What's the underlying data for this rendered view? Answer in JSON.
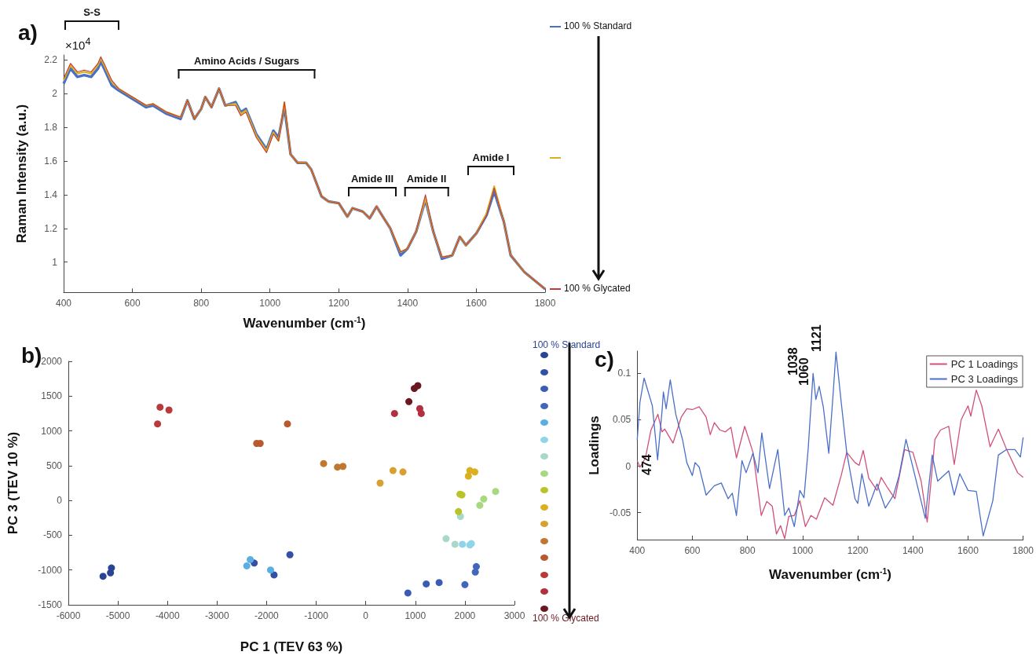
{
  "chart_data": [
    {
      "type": "line",
      "title": "a)",
      "xlabel": "Wavenumber (cm$^{-1}$)",
      "ylabel": "Raman Intensity (a.u.)",
      "xlim": [
        400,
        1800
      ],
      "xticks": [
        400,
        600,
        800,
        1000,
        1200,
        1400,
        1600,
        1800
      ],
      "ylim": [
        0.82,
        2.23
      ],
      "yticks": [
        1,
        1.2,
        1.4,
        1.6,
        1.8,
        2,
        2.2
      ],
      "grid": false,
      "legend": "right",
      "marker": "none",
      "annotations": [
        "×10$^{4}$",
        "S-S",
        "Amino Acids / Sugars",
        "Amide III",
        "Amide II",
        "Amide I"
      ],
      "x": [
        400,
        420,
        440,
        460,
        480,
        500,
        508,
        520,
        540,
        560,
        600,
        640,
        660,
        700,
        740,
        760,
        780,
        800,
        812,
        830,
        852,
        870,
        900,
        915,
        930,
        960,
        990,
        1010,
        1025,
        1042,
        1060,
        1080,
        1105,
        1120,
        1150,
        1170,
        1200,
        1225,
        1240,
        1270,
        1290,
        1310,
        1325,
        1350,
        1380,
        1400,
        1425,
        1452,
        1475,
        1500,
        1530,
        1552,
        1570,
        1600,
        1630,
        1652,
        1680,
        1700,
        1740,
        1800
      ],
      "series": [
        {
          "name": "100 % Standard",
          "color": "#4a6fc8",
          "values": [
            2.06,
            2.15,
            2.1,
            2.11,
            2.1,
            2.15,
            2.19,
            2.14,
            2.05,
            2.02,
            1.97,
            1.92,
            1.93,
            1.88,
            1.85,
            1.96,
            1.85,
            1.91,
            1.98,
            1.92,
            2.03,
            1.93,
            1.95,
            1.89,
            1.91,
            1.76,
            1.67,
            1.78,
            1.74,
            1.92,
            1.64,
            1.59,
            1.59,
            1.55,
            1.39,
            1.36,
            1.35,
            1.27,
            1.32,
            1.3,
            1.26,
            1.33,
            1.28,
            1.2,
            1.04,
            1.08,
            1.18,
            1.37,
            1.18,
            1.02,
            1.04,
            1.15,
            1.1,
            1.17,
            1.28,
            1.42,
            1.24,
            1.04,
            0.94,
            0.84
          ]
        },
        {
          "color": "#d8b020",
          "values": [
            2.08,
            2.17,
            2.12,
            2.13,
            2.12,
            2.17,
            2.21,
            2.16,
            2.07,
            2.03,
            1.98,
            1.93,
            1.94,
            1.89,
            1.86,
            1.96,
            1.85,
            1.91,
            1.98,
            1.92,
            2.03,
            1.93,
            1.94,
            1.88,
            1.9,
            1.75,
            1.66,
            1.77,
            1.72,
            1.95,
            1.64,
            1.59,
            1.59,
            1.55,
            1.39,
            1.36,
            1.35,
            1.27,
            1.32,
            1.3,
            1.26,
            1.33,
            1.28,
            1.2,
            1.06,
            1.08,
            1.18,
            1.38,
            1.18,
            1.03,
            1.04,
            1.15,
            1.1,
            1.17,
            1.29,
            1.45,
            1.24,
            1.04,
            0.94,
            0.84
          ]
        },
        {
          "name": "100 % Glycated",
          "color": "#c83838",
          "values": [
            2.09,
            2.18,
            2.13,
            2.14,
            2.13,
            2.18,
            2.22,
            2.17,
            2.08,
            2.03,
            1.98,
            1.93,
            1.94,
            1.89,
            1.86,
            1.96,
            1.85,
            1.91,
            1.98,
            1.92,
            2.03,
            1.93,
            1.93,
            1.87,
            1.89,
            1.74,
            1.65,
            1.76,
            1.72,
            1.95,
            1.64,
            1.59,
            1.59,
            1.55,
            1.39,
            1.36,
            1.35,
            1.27,
            1.32,
            1.3,
            1.26,
            1.33,
            1.28,
            1.2,
            1.06,
            1.08,
            1.18,
            1.4,
            1.18,
            1.03,
            1.04,
            1.15,
            1.1,
            1.17,
            1.28,
            1.44,
            1.24,
            1.04,
            0.94,
            0.84
          ]
        }
      ]
    },
    {
      "type": "scatter",
      "title": "b)",
      "xlabel": "PC 1 (TEV 63 %)",
      "ylabel": "PC 3 (TEV 10 %)",
      "xlim": [
        -6000,
        3000
      ],
      "xticks": [
        -6000,
        -5000,
        -4000,
        -3000,
        -2000,
        -1000,
        0,
        1000,
        2000,
        3000
      ],
      "ylim": [
        -1500,
        2000
      ],
      "yticks": [
        -1500,
        -1000,
        -500,
        0,
        500,
        1000,
        1500,
        2000
      ],
      "grid": false,
      "legend": "right",
      "marker": "circle",
      "series": [
        {
          "name": "100 % Standard",
          "color": "#2a4494",
          "x": [
            -5300,
            -5150,
            -5130
          ],
          "values": [
            -1090,
            -1040,
            -970
          ]
        },
        {
          "color": "#3350a6",
          "x": [
            -2250,
            -1850,
            -1530
          ],
          "values": [
            -900,
            -1070,
            -780
          ]
        },
        {
          "color": "#3a5cb4",
          "x": [
            850,
            1220,
            1480
          ],
          "values": [
            -1330,
            -1200,
            -1180
          ]
        },
        {
          "color": "#4266bc",
          "x": [
            2000,
            2210,
            2230
          ],
          "values": [
            -1210,
            -1030,
            -950
          ]
        },
        {
          "color": "#5aaee0",
          "x": [
            -2400,
            -2330,
            -1920
          ],
          "values": [
            -940,
            -850,
            -1000
          ]
        },
        {
          "color": "#8fd4e8",
          "x": [
            1950,
            2100,
            2130
          ],
          "values": [
            -630,
            -640,
            -620
          ]
        },
        {
          "color": "#a8d8c8",
          "x": [
            1620,
            1800,
            1910
          ],
          "values": [
            -550,
            -630,
            -230
          ]
        },
        {
          "color": "#a8d880",
          "x": [
            2300,
            2380,
            2620
          ],
          "values": [
            -70,
            20,
            130
          ]
        },
        {
          "color": "#b8c428",
          "x": [
            1870,
            1900,
            1940
          ],
          "values": [
            -160,
            90,
            80
          ]
        },
        {
          "color": "#d8b020",
          "x": [
            2070,
            2100,
            2200
          ],
          "values": [
            350,
            430,
            410
          ]
        },
        {
          "color": "#d8a030",
          "x": [
            290,
            550,
            750
          ],
          "values": [
            250,
            430,
            410
          ]
        },
        {
          "color": "#c07830",
          "x": [
            -850,
            -570,
            -460
          ],
          "values": [
            530,
            480,
            490
          ]
        },
        {
          "color": "#b85a30",
          "x": [
            -2200,
            -2130,
            -1580
          ],
          "values": [
            820,
            820,
            1100
          ]
        },
        {
          "color": "#b83a3a",
          "x": [
            -4200,
            -4150,
            -3970
          ],
          "values": [
            1100,
            1340,
            1300
          ]
        },
        {
          "color": "#b03040",
          "x": [
            580,
            1090,
            1120
          ],
          "values": [
            1250,
            1320,
            1250
          ]
        },
        {
          "name": "100 % Glycated",
          "color": "#6a1820",
          "x": [
            870,
            980,
            1050
          ],
          "values": [
            1420,
            1610,
            1650
          ]
        }
      ]
    },
    {
      "type": "line",
      "title": "c)",
      "xlabel": "Wavenumber (cm$^{-1}$)",
      "ylabel": "Loadings",
      "xlim": [
        400,
        1800
      ],
      "xticks": [
        400,
        600,
        800,
        1000,
        1200,
        1400,
        1600,
        1800
      ],
      "ylim": [
        -0.079,
        0.124
      ],
      "yticks": [
        -0.05,
        0,
        0.05,
        0.1
      ],
      "grid": false,
      "legend": "top right",
      "marker": "none",
      "annotations": [
        "474",
        "1038",
        "1060",
        "1121"
      ],
      "series": [
        {
          "name": "PC 1 Loadings",
          "color": "#d0507a",
          "x": [
            400,
            410,
            430,
            450,
            475,
            490,
            500,
            530,
            560,
            580,
            600,
            625,
            650,
            665,
            680,
            700,
            720,
            740,
            760,
            790,
            820,
            850,
            870,
            890,
            905,
            920,
            935,
            950,
            970,
            990,
            1010,
            1030,
            1050,
            1080,
            1110,
            1140,
            1160,
            1190,
            1205,
            1220,
            1240,
            1270,
            1285,
            1310,
            1335,
            1370,
            1400,
            1430,
            1452,
            1480,
            1500,
            1530,
            1550,
            1575,
            1600,
            1610,
            1630,
            1650,
            1680,
            1710,
            1740,
            1780,
            1800
          ],
          "values": [
            0.006,
            -0.001,
            0.009,
            0.039,
            0.056,
            0.037,
            0.04,
            0.025,
            0.053,
            0.062,
            0.061,
            0.064,
            0.053,
            0.034,
            0.047,
            0.039,
            0.037,
            0.042,
            0.009,
            0.043,
            0.015,
            -0.053,
            -0.038,
            -0.043,
            -0.073,
            -0.064,
            -0.078,
            -0.054,
            -0.053,
            -0.037,
            -0.065,
            -0.053,
            -0.057,
            -0.034,
            -0.042,
            -0.01,
            0.015,
            0.004,
            0.001,
            0.017,
            -0.013,
            -0.026,
            -0.012,
            -0.024,
            -0.035,
            0.018,
            0.015,
            -0.016,
            -0.06,
            0.029,
            0.039,
            0.043,
            0.002,
            0.05,
            0.065,
            0.054,
            0.082,
            0.065,
            0.021,
            0.04,
            0.018,
            -0.007,
            -0.012
          ]
        },
        {
          "name": "PC 3 Loadings",
          "color": "#4a6fc8",
          "x": [
            400,
            410,
            425,
            440,
            455,
            474,
            490,
            495,
            505,
            520,
            540,
            565,
            580,
            600,
            610,
            625,
            650,
            680,
            705,
            730,
            745,
            760,
            780,
            795,
            820,
            838,
            852,
            880,
            910,
            935,
            950,
            970,
            990,
            1005,
            1020,
            1038,
            1048,
            1060,
            1075,
            1095,
            1110,
            1121,
            1140,
            1160,
            1190,
            1200,
            1215,
            1240,
            1270,
            1300,
            1330,
            1350,
            1375,
            1400,
            1445,
            1470,
            1490,
            1530,
            1550,
            1570,
            1600,
            1630,
            1655,
            1690,
            1710,
            1740,
            1770,
            1790,
            1800
          ],
          "values": [
            0.028,
            0.069,
            0.095,
            0.08,
            0.065,
            0.007,
            0.059,
            0.08,
            0.062,
            0.093,
            0.056,
            0.028,
            0.004,
            -0.01,
            0.004,
            -0.001,
            -0.031,
            -0.021,
            -0.018,
            -0.035,
            -0.029,
            -0.053,
            0.006,
            -0.007,
            0.014,
            -0.007,
            0.036,
            -0.024,
            0.018,
            -0.053,
            -0.045,
            -0.065,
            -0.026,
            -0.034,
            0.018,
            0.1,
            0.072,
            0.086,
            0.064,
            0.014,
            0.075,
            0.123,
            0.069,
            0.015,
            -0.035,
            -0.04,
            -0.008,
            -0.043,
            -0.019,
            -0.045,
            -0.031,
            -0.01,
            0.029,
            -0.001,
            -0.056,
            0.012,
            -0.016,
            -0.005,
            -0.031,
            -0.008,
            -0.026,
            -0.027,
            -0.075,
            -0.037,
            0.012,
            0.018,
            0.018,
            0.01,
            0.031
          ]
        }
      ]
    }
  ]
}
